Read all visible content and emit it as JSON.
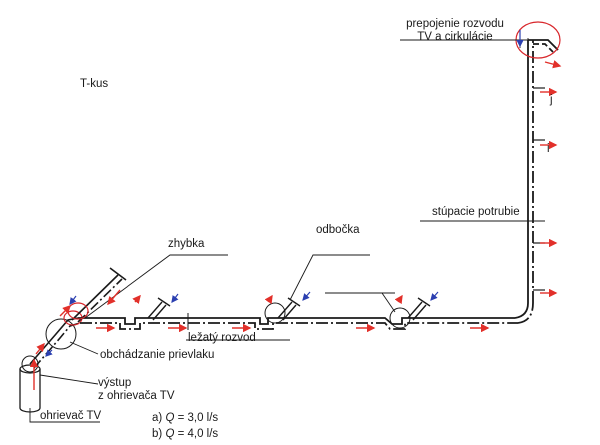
{
  "labels": {
    "t_kus": "T-kus",
    "prepojenie_line1": "prepojenie rozvodu",
    "prepojenie_line2": "TV a cirkulácie",
    "j": "j",
    "i": "i",
    "stupacie": "stúpacie potrubie",
    "odbocka": "odbočka",
    "zhybka": "zhybka",
    "lezaty": "ležatý rozvod",
    "obchadzanie": "obchádzanie prievlaku",
    "vystup_line1": "výstup",
    "vystup_line2": "z ohrievača TV",
    "ohrievac": "ohrievač TV",
    "flow_a_prefix": "a)",
    "flow_a_q": "Q",
    "flow_a_value": "= 3,0  l/s",
    "flow_b_prefix": "b)",
    "flow_b_q": "Q",
    "flow_b_value": "= 4,0  l/s"
  },
  "colors": {
    "pipe": "#1a1a1a",
    "flow_arrow": "#e2302a",
    "circulation_arrow": "#2b3fb0",
    "highlight": "#d8262b"
  }
}
